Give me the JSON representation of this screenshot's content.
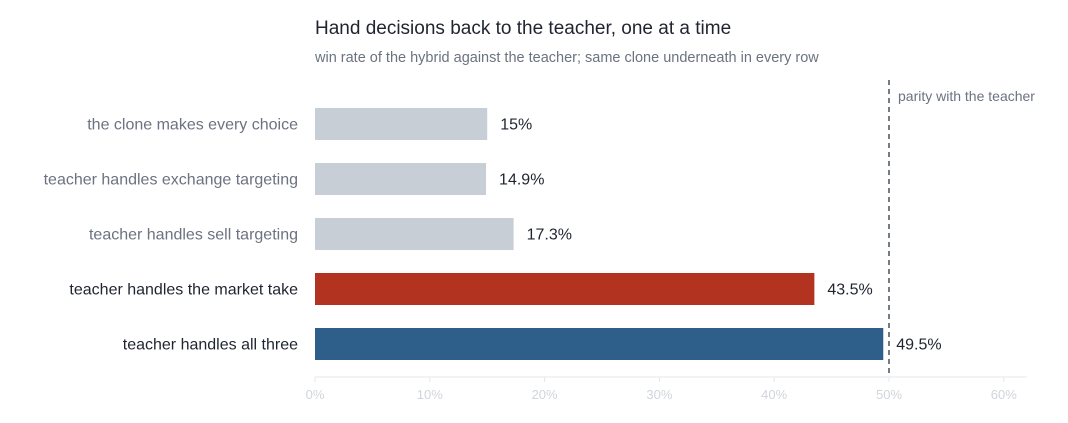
{
  "chart_data": {
    "type": "bar",
    "orientation": "horizontal",
    "title": "Hand decisions back to the teacher, one at a time",
    "subtitle": "win rate of the hybrid against the teacher; same clone underneath in every row",
    "categories": [
      "the clone makes every choice",
      "teacher handles exchange targeting",
      "teacher handles sell targeting",
      "teacher handles the market take",
      "teacher handles all three"
    ],
    "values": [
      15,
      14.9,
      17.3,
      43.5,
      49.5
    ],
    "value_labels": [
      "15%",
      "14.9%",
      "17.3%",
      "43.5%",
      "49.5%"
    ],
    "bar_colors": [
      "#c8ced6",
      "#c8ced6",
      "#c8ced6",
      "#b33321",
      "#2e5f8a"
    ],
    "label_colors": [
      "#6b7280",
      "#6b7280",
      "#6b7280",
      "#1f2430",
      "#1f2430"
    ],
    "xlim": [
      0,
      62
    ],
    "ticks": [
      0,
      10,
      20,
      30,
      40,
      50,
      60
    ],
    "tick_labels": [
      "0%",
      "10%",
      "20%",
      "30%",
      "40%",
      "50%",
      "60%"
    ],
    "reference_line": {
      "value": 50,
      "label": "parity with the teacher",
      "style": "dashed"
    },
    "xlabel": "",
    "ylabel": "",
    "grid": false,
    "legend": "none"
  }
}
